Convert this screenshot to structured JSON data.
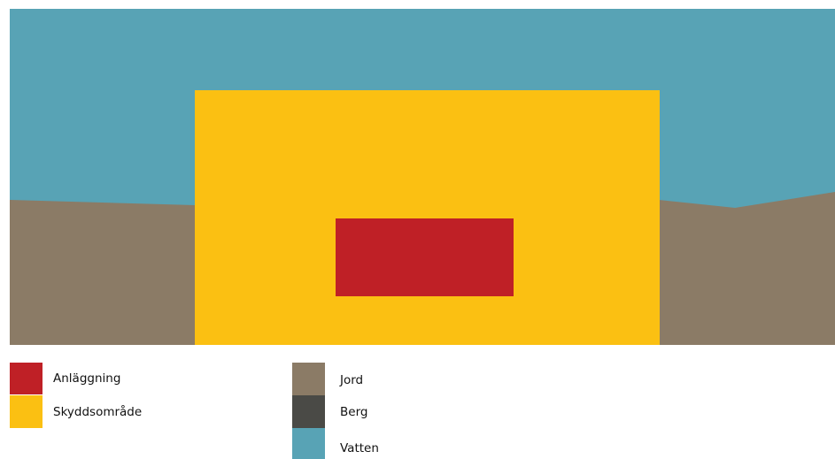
{
  "colors": {
    "water": "#58a3b5",
    "soil": "#8b7b66",
    "rock": "#4a4a46",
    "protection_zone": "#fbc012",
    "facility": "#bf2026"
  },
  "legend": {
    "items": [
      {
        "label": "Anläggning",
        "color": "#bf2026"
      },
      {
        "label": "Skyddsområde",
        "color": "#fbc012"
      },
      {
        "label": "Jord",
        "color": "#8b7b66"
      },
      {
        "label": "Berg",
        "color": "#4a4a46"
      },
      {
        "label": "Vatten",
        "color": "#58a3b5"
      }
    ]
  }
}
